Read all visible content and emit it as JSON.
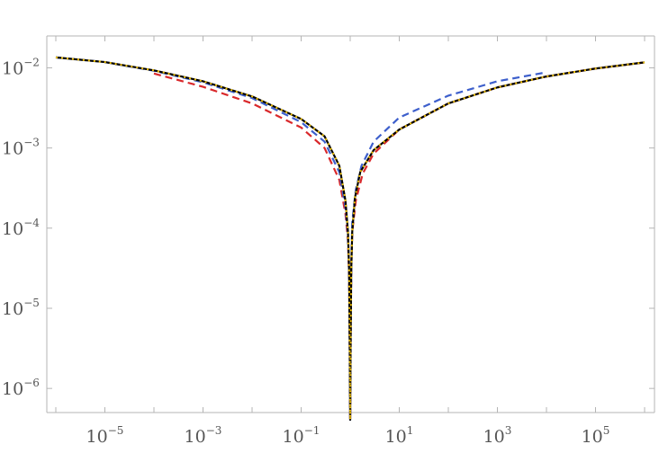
{
  "chart_data": {
    "type": "line",
    "title": "",
    "xlabel": "",
    "ylabel": "",
    "x_scale": "log",
    "y_scale": "log",
    "xlim": [
      1e-06,
      1000000.0
    ],
    "ylim": [
      5e-07,
      0.025
    ],
    "grid": false,
    "legend": "none",
    "x_ticks": [
      {
        "value": 1e-05,
        "base": "10",
        "exp": "−5"
      },
      {
        "value": 0.001,
        "base": "10",
        "exp": "−3"
      },
      {
        "value": 0.1,
        "base": "10",
        "exp": "−1"
      },
      {
        "value": 10.0,
        "base": "10",
        "exp": "1"
      },
      {
        "value": 1000.0,
        "base": "10",
        "exp": "3"
      },
      {
        "value": 100000.0,
        "base": "10",
        "exp": "5"
      }
    ],
    "y_ticks": [
      {
        "value": 0.01,
        "base": "10",
        "exp": "−2"
      },
      {
        "value": 0.001,
        "base": "10",
        "exp": "−3"
      },
      {
        "value": 0.0001,
        "base": "10",
        "exp": "−4"
      },
      {
        "value": 1e-05,
        "base": "10",
        "exp": "−5"
      },
      {
        "value": 1e-06,
        "base": "10",
        "exp": "−6"
      }
    ],
    "series": [
      {
        "color": "#000000",
        "dash": "solid",
        "width": 2.2,
        "x": [
          1e-06,
          1e-05,
          0.0001,
          0.001,
          0.01,
          0.1,
          0.3,
          0.6,
          0.8,
          0.9,
          0.95,
          0.98,
          1.0,
          1.02,
          1.05,
          1.1,
          1.25,
          1.6,
          3,
          10,
          100,
          1000,
          10000.0,
          100000.0,
          1000000.0
        ],
        "y": [
          0.0135,
          0.0118,
          0.0093,
          0.0068,
          0.0044,
          0.0023,
          0.0014,
          0.0006,
          0.00022,
          9e-05,
          3e-05,
          3e-06,
          1e-07,
          3.5e-06,
          3e-05,
          9e-05,
          0.00024,
          0.0005,
          0.00094,
          0.0017,
          0.0036,
          0.0057,
          0.0078,
          0.0098,
          0.0117
        ]
      },
      {
        "color": "#f2c200",
        "dash": "dotted",
        "width": 2,
        "x": [
          1e-06,
          1e-05,
          0.0001,
          0.001,
          0.01,
          0.1,
          0.3,
          0.6,
          0.8,
          0.9,
          0.95,
          0.98,
          1.0,
          1.02,
          1.05,
          1.1,
          1.25,
          1.6,
          3,
          10,
          100,
          1000,
          10000.0,
          100000.0,
          1000000.0
        ],
        "y": [
          0.0135,
          0.0118,
          0.0093,
          0.0068,
          0.0044,
          0.0023,
          0.0014,
          0.0006,
          0.00022,
          9e-05,
          3e-05,
          3e-06,
          1e-07,
          3.5e-06,
          3e-05,
          9e-05,
          0.00024,
          0.0005,
          0.00094,
          0.0017,
          0.0036,
          0.0057,
          0.0078,
          0.0098,
          0.0117
        ]
      },
      {
        "color": "#3d5fcc",
        "dash": "dashed",
        "width": 2.2,
        "x": [
          1e-06,
          1e-05,
          0.0001,
          0.001,
          0.01,
          0.1,
          0.3,
          0.6,
          0.8,
          0.9,
          0.95,
          0.98,
          1.0,
          1.02,
          1.05,
          1.1,
          1.3,
          1.7,
          3,
          10,
          100,
          1000,
          10000.0
        ],
        "y": [
          0.0135,
          0.0118,
          0.0092,
          0.0066,
          0.0042,
          0.0021,
          0.0012,
          0.0005,
          0.00018,
          8e-05,
          3e-05,
          3e-06,
          1e-07,
          3.5e-06,
          3e-05,
          0.00012,
          0.0003,
          0.0006,
          0.0012,
          0.0024,
          0.0045,
          0.0068,
          0.0088
        ]
      },
      {
        "color": "#d9282b",
        "dash": "dashed",
        "width": 2.2,
        "x": [
          0.0001,
          0.001,
          0.01,
          0.1,
          0.3,
          0.6,
          0.8,
          0.9,
          0.95,
          0.98,
          1.0,
          1.02,
          1.05,
          1.1,
          1.3,
          1.8,
          3,
          10,
          100,
          1000,
          10000.0,
          100000.0,
          1000000.0
        ],
        "y": [
          0.0085,
          0.0058,
          0.0036,
          0.0018,
          0.001,
          0.0004,
          0.00015,
          7e-05,
          2.5e-05,
          3e-06,
          1e-07,
          3.5e-06,
          3e-05,
          9e-05,
          0.00022,
          0.00048,
          0.00085,
          0.0017,
          0.0036,
          0.0057,
          0.0078,
          0.0098,
          0.0117
        ]
      }
    ]
  }
}
